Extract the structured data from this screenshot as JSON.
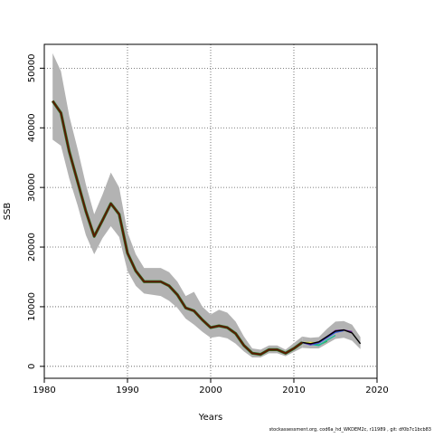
{
  "chart_data": {
    "type": "line",
    "xlabel": "Years",
    "ylabel": "SSB",
    "xlim": [
      1980,
      2020
    ],
    "ylim": [
      -2000,
      54000
    ],
    "x_ticks": [
      1980,
      1990,
      2000,
      2010,
      2020
    ],
    "y_ticks": [
      0,
      10000,
      20000,
      30000,
      40000,
      50000
    ],
    "grid": true,
    "grid_style": "dotted",
    "colors": {
      "band": "#b3b3b3",
      "main": "#5a1a00",
      "secondary": "#2d7a2d",
      "retro": [
        "#e8e14a",
        "#3cb44b",
        "#1abc9c",
        "#3b5bdb",
        "#6a1b9a",
        "#000000"
      ]
    },
    "x": [
      1981,
      1982,
      1983,
      1984,
      1985,
      1986,
      1987,
      1988,
      1989,
      1990,
      1991,
      1992,
      1993,
      1994,
      1995,
      1996,
      1997,
      1998,
      1999,
      2000,
      2001,
      2002,
      2003,
      2004,
      2005,
      2006,
      2007,
      2008,
      2009,
      2010,
      2011
    ],
    "series": [
      {
        "values": [
          44500,
          42500,
          36000,
          31000,
          26000,
          21800,
          24500,
          27300,
          25500,
          19000,
          16000,
          14200,
          14200,
          14200,
          13500,
          12000,
          9800,
          9300,
          7800,
          6500,
          6800,
          6500,
          5500,
          3500,
          2200,
          2000,
          2800,
          2800,
          2200,
          3000,
          4000
        ]
      }
    ],
    "confidence_band": {
      "lower": [
        38000,
        37000,
        31500,
        27000,
        22000,
        18800,
        21500,
        23500,
        21700,
        16000,
        13500,
        12200,
        12000,
        11800,
        11000,
        9800,
        8000,
        7000,
        5800,
        4800,
        5000,
        4700,
        3800,
        2500,
        1500,
        1500,
        2200,
        2200,
        1700,
        2400,
        3100
      ],
      "upper": [
        52500,
        49500,
        42000,
        36500,
        30500,
        25500,
        28800,
        32500,
        30000,
        22500,
        18800,
        16500,
        16500,
        16500,
        15800,
        14200,
        11800,
        12500,
        10000,
        8700,
        9500,
        9000,
        7500,
        5000,
        3000,
        2800,
        3500,
        3500,
        2800,
        3900,
        5000
      ]
    },
    "retro_peels": [
      {
        "x": [
          2011,
          2012,
          2013
        ],
        "values": [
          4000,
          4000,
          3900
        ]
      },
      {
        "x": [
          2011,
          2012,
          2013,
          2014
        ],
        "values": [
          4000,
          3800,
          3600,
          4200
        ]
      },
      {
        "x": [
          2011,
          2012,
          2013,
          2014,
          2015
        ],
        "values": [
          4000,
          3700,
          3500,
          4400,
          5200
        ]
      },
      {
        "x": [
          2011,
          2012,
          2013,
          2014,
          2015,
          2016
        ],
        "values": [
          4000,
          3600,
          3900,
          4800,
          5700,
          6000
        ]
      },
      {
        "x": [
          2011,
          2012,
          2013,
          2014,
          2015,
          2016,
          2017
        ],
        "values": [
          4000,
          3700,
          4100,
          5000,
          6000,
          6100,
          5800
        ]
      },
      {
        "x": [
          2011,
          2012,
          2013,
          2014,
          2015,
          2016,
          2017,
          2018
        ],
        "values": [
          4000,
          3800,
          4100,
          5000,
          5900,
          6100,
          5600,
          3800
        ]
      }
    ],
    "recent_band": {
      "x": [
        2011,
        2012,
        2013,
        2014,
        2015,
        2016,
        2017,
        2018
      ],
      "lower": [
        3100,
        3000,
        3000,
        3800,
        4600,
        4800,
        4300,
        2900
      ],
      "upper": [
        5000,
        4800,
        4900,
        6300,
        7500,
        7600,
        7000,
        4900
      ]
    }
  },
  "footer": "stockassessment.org, cod6a_hd_WKDEM2c, r11989 , git: df0b7c1bcb83"
}
